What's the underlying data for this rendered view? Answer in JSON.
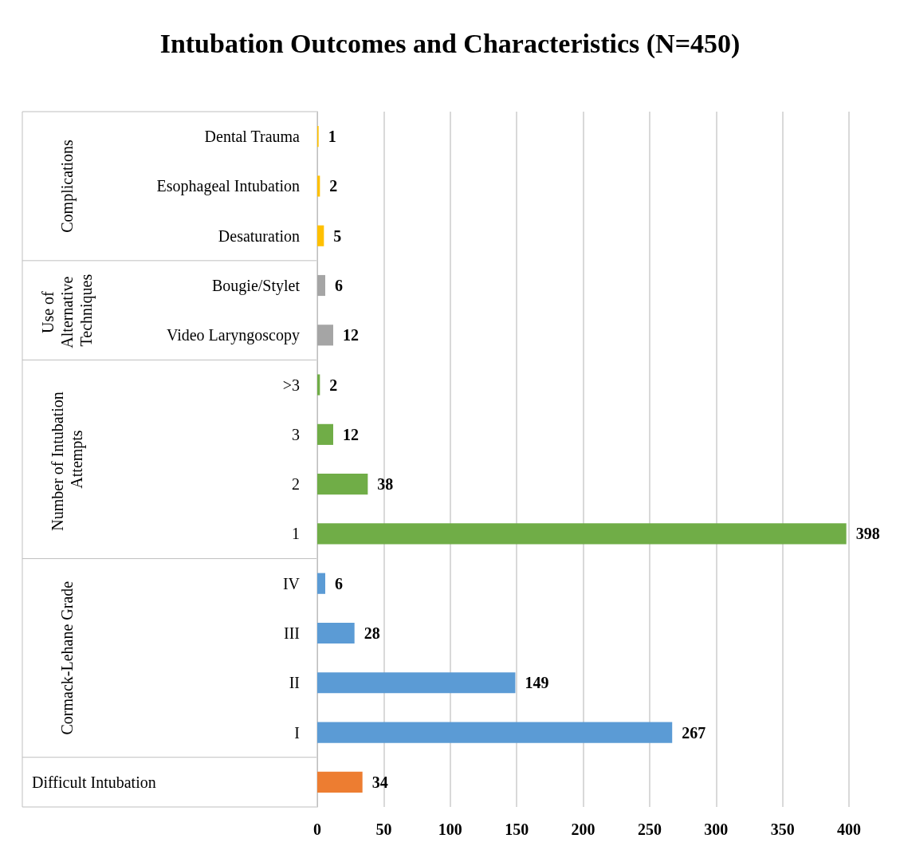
{
  "chart_data": {
    "type": "bar",
    "orientation": "horizontal",
    "title": "Intubation Outcomes and Characteristics (N=450)",
    "categories": [
      "Dental Trauma",
      "Esophageal Intubation",
      "Desaturation",
      "Bougie/Stylet",
      "Video Laryngoscopy",
      ">3",
      "3",
      "2",
      "1",
      "IV",
      "III",
      "II",
      "I",
      null
    ],
    "values": [
      1,
      2,
      5,
      6,
      12,
      2,
      12,
      38,
      398,
      6,
      28,
      149,
      267,
      34
    ],
    "colors": [
      "#ffc000",
      "#ffc000",
      "#ffc000",
      "#a5a5a5",
      "#a5a5a5",
      "#70ad47",
      "#70ad47",
      "#70ad47",
      "#70ad47",
      "#5b9bd5",
      "#5b9bd5",
      "#5b9bd5",
      "#5b9bd5",
      "#ed7d31"
    ],
    "annotations": [
      "Complications",
      "Use of Alternative Techniques",
      "Number of Intubation Attempts",
      "Cormack-Lehane Grade",
      "Difficult Intubation"
    ],
    "xlim": [
      0,
      400
    ],
    "xticks": [
      0,
      50,
      100,
      150,
      200,
      250,
      300,
      350,
      400
    ],
    "grid": "x",
    "data_labels": true
  }
}
